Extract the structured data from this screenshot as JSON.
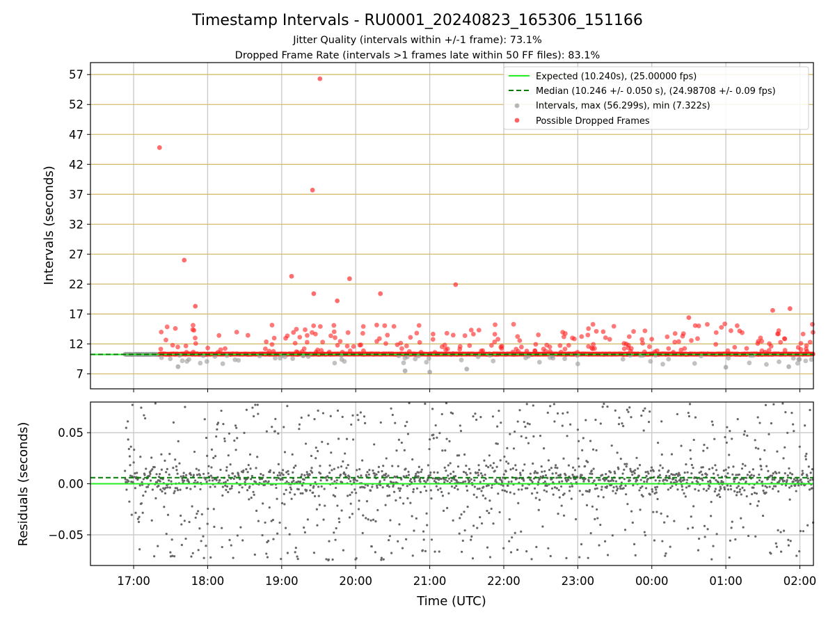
{
  "chart_data": [
    {
      "type": "scatter",
      "panel": "top",
      "title": "Timestamp Intervals - RU0001_20240823_165306_151166",
      "subtitle_lines": [
        "Jitter Quality (intervals within +/-1 frame): 73.1%",
        "Dropped Frame Rate (intervals >1 frames late within 50 FF files): 83.1%"
      ],
      "ylabel": "Intervals (seconds)",
      "ylim": [
        4.5,
        59
      ],
      "y_ticks": [
        "7",
        "12",
        "17",
        "22",
        "27",
        "32",
        "37",
        "42",
        "47",
        "52",
        "57"
      ],
      "grid": true,
      "legend_position": "top-right",
      "legend": [
        "Expected (10.240s), (25.00000 fps)",
        "Median (10.246 +/- 0.050 s), (24.98708 +/- 0.09 fps)",
        "Intervals, max (56.299s), min (7.322s)",
        "Possible Dropped Frames"
      ],
      "expected_interval": 10.24,
      "median_interval": 10.246,
      "dropped_frames_sample": [
        {
          "x": "17:21",
          "y": 44.8
        },
        {
          "x": "17:41",
          "y": 26.0
        },
        {
          "x": "17:50",
          "y": 18.3
        },
        {
          "x": "19:08",
          "y": 23.3
        },
        {
          "x": "19:25",
          "y": 37.7
        },
        {
          "x": "19:26",
          "y": 20.4
        },
        {
          "x": "19:31",
          "y": 56.3
        },
        {
          "x": "19:45",
          "y": 19.2
        },
        {
          "x": "19:55",
          "y": 22.9
        },
        {
          "x": "20:20",
          "y": 20.4
        },
        {
          "x": "21:21",
          "y": 21.9
        },
        {
          "x": "00:30",
          "y": 16.4
        },
        {
          "x": "01:38",
          "y": 17.6
        },
        {
          "x": "01:52",
          "y": 17.9
        }
      ],
      "interval_lows_sample": [
        {
          "x": "17:36",
          "y": 8.2
        },
        {
          "x": "20:40",
          "y": 7.5
        },
        {
          "x": "21:00",
          "y": 7.3
        },
        {
          "x": "21:30",
          "y": 7.8
        },
        {
          "x": "01:00",
          "y": 8.1
        },
        {
          "x": "01:51",
          "y": 8.2
        }
      ]
    },
    {
      "type": "scatter",
      "panel": "bottom",
      "ylabel": "Residuals (seconds)",
      "xlabel": "Time (UTC)",
      "ylim": [
        -0.08,
        0.08
      ],
      "y_ticks": [
        "0.05",
        "0.00",
        "−0.05"
      ],
      "x_ticks": [
        "17:00",
        "18:00",
        "19:00",
        "20:00",
        "21:00",
        "22:00",
        "23:00",
        "00:00",
        "01:00",
        "02:00"
      ],
      "x_range": [
        "16:25",
        "02:11"
      ],
      "expected_residual": 0.0,
      "median_residual": 0.006,
      "grid": true
    }
  ],
  "colors": {
    "expected": "#22ee22",
    "median": "#007a00",
    "intervals": "#999999",
    "dropped": "#ff2020",
    "residuals": "#666666",
    "hgrid_top": "#d4bc6c",
    "grid": "#c8c8c8"
  }
}
